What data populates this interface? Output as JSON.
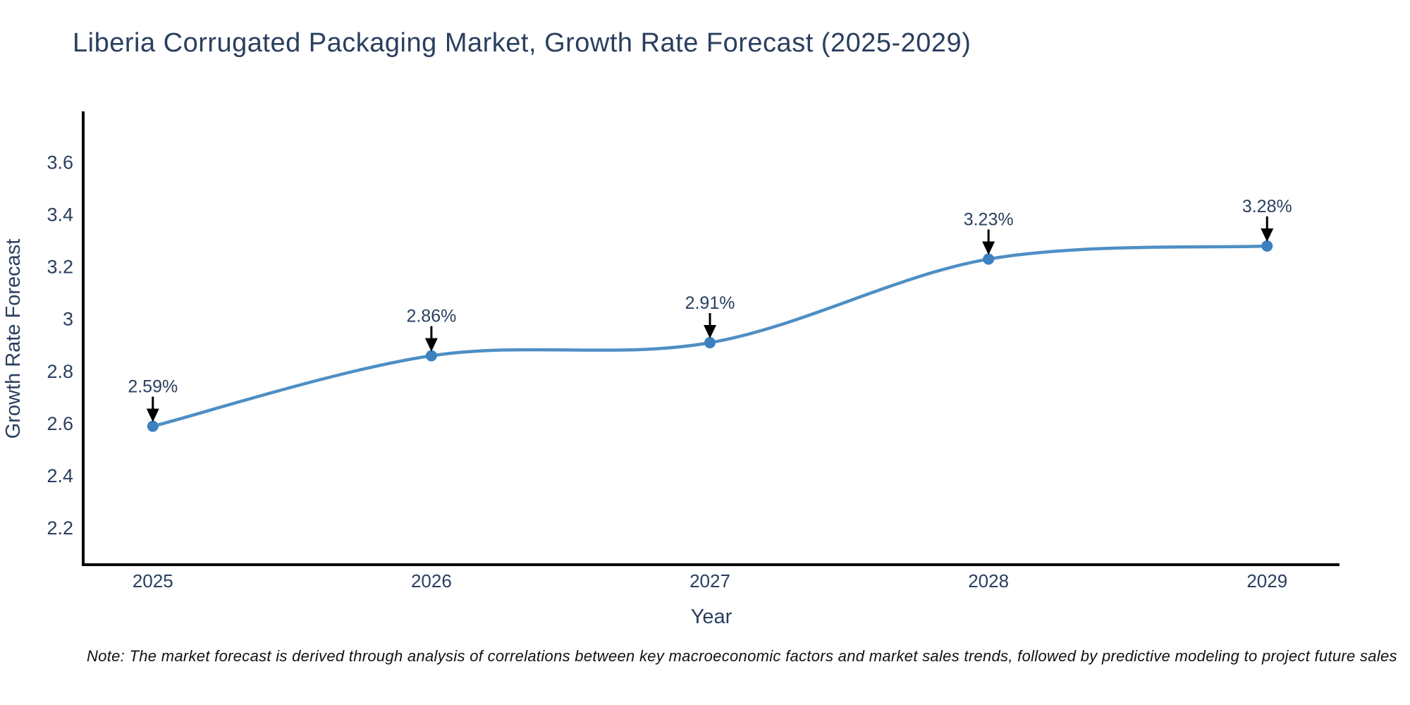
{
  "title": "Liberia Corrugated Packaging Market, Growth Rate Forecast (2025-2029)",
  "note": "Note: The market forecast is derived through analysis of correlations between key macroeconomic factors and market sales trends, followed by predictive modeling to project future sales",
  "chart_data": {
    "type": "line",
    "title": "Liberia Corrugated Packaging Market, Growth Rate Forecast (2025-2029)",
    "xlabel": "Year",
    "ylabel": "Growth Rate Forecast",
    "x": [
      2025,
      2026,
      2027,
      2028,
      2029
    ],
    "series": [
      {
        "name": "Growth Rate Forecast",
        "values": [
          2.59,
          2.86,
          2.91,
          3.23,
          3.28
        ]
      }
    ],
    "point_labels": [
      "2.59%",
      "2.86%",
      "2.91%",
      "3.23%",
      "3.28%"
    ],
    "xtick_labels": [
      "2025",
      "2026",
      "2027",
      "2028",
      "2029"
    ],
    "yticks": [
      2.2,
      2.4,
      2.6,
      2.8,
      3,
      3.2,
      3.4,
      3.6
    ],
    "ytick_labels": [
      "2.2",
      "2.4",
      "2.6",
      "2.8",
      "3",
      "3.2",
      "3.4",
      "3.6"
    ],
    "xlim": [
      2024.75,
      2029.26
    ],
    "ylim": [
      2.06,
      3.79
    ],
    "grid": false,
    "legend": false,
    "line_shape": "spline",
    "colors": {
      "line": "#4e8fc4",
      "marker": "#3d80c0",
      "axis": "#000000",
      "text": "#2a3f5f",
      "annotation_arrow": "#000000"
    }
  }
}
